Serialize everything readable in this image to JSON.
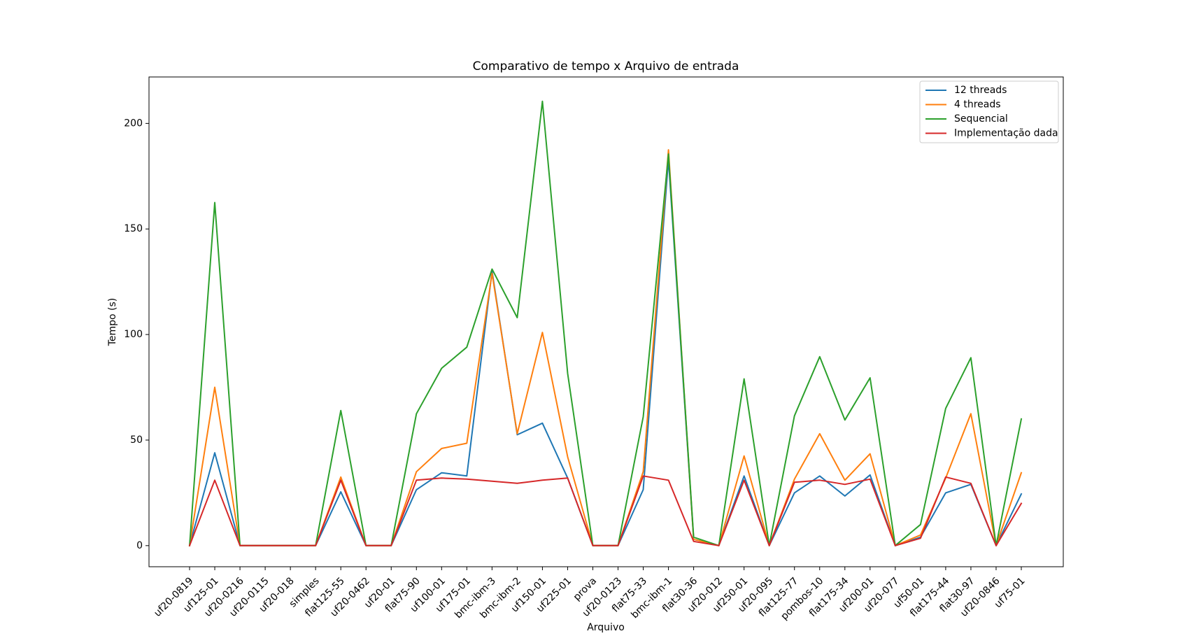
{
  "chart_data": {
    "type": "line",
    "title": "Comparativo de tempo x Arquivo de entrada",
    "xlabel": "Arquivo",
    "ylabel": "Tempo (s)",
    "ylim": [
      -10,
      222
    ],
    "yticks": [
      0,
      50,
      100,
      150,
      200
    ],
    "grid": false,
    "legend_position": "top-right",
    "categories": [
      "uf20-0819",
      "uf125-01",
      "uf20-0216",
      "uf20-0115",
      "uf20-018",
      "simples",
      "flat125-55",
      "uf20-0462",
      "uf20-01",
      "flat75-90",
      "uf100-01",
      "uf175-01",
      "bmc-ibm-3",
      "bmc-ibm-2",
      "uf150-01",
      "uf225-01",
      "prova",
      "uf20-0123",
      "flat75-33",
      "bmc-ibm-1",
      "flat30-36",
      "uf20-012",
      "uf250-01",
      "uf20-095",
      "flat125-77",
      "pombos-10",
      "flat175-34",
      "uf200-01",
      "uf20-077",
      "uf50-01",
      "flat175-44",
      "flat30-97",
      "uf20-0846",
      "uf75-01"
    ],
    "series": [
      {
        "name": "12 threads",
        "color": "#1f77b4",
        "values": [
          0,
          44,
          0,
          0,
          0,
          0,
          25.5,
          0,
          0,
          26.5,
          34.5,
          33,
          130,
          52.5,
          58,
          32,
          0,
          0,
          26.5,
          183,
          3,
          0,
          33,
          0,
          25,
          33,
          23.5,
          33.5,
          0,
          4,
          25,
          29,
          0,
          24.5
        ]
      },
      {
        "name": "4 threads",
        "color": "#ff7f0e",
        "values": [
          0,
          75,
          0,
          0,
          0,
          0,
          32.5,
          0,
          0,
          35,
          46,
          48.5,
          129,
          53,
          101,
          42,
          0,
          0,
          35,
          187.5,
          3,
          0,
          42.5,
          0,
          31.5,
          53,
          31,
          43.5,
          0,
          5,
          32,
          62.5,
          0,
          34.5
        ]
      },
      {
        "name": "Sequencial",
        "color": "#2ca02c",
        "values": [
          0,
          162.5,
          0,
          0,
          0,
          0,
          64,
          0,
          0,
          62.5,
          84,
          94,
          131,
          108,
          210.5,
          81.5,
          0,
          0,
          61,
          185.5,
          4,
          0,
          79,
          0,
          61.5,
          89.5,
          59.5,
          79.5,
          0,
          10,
          65,
          89,
          0,
          60
        ]
      },
      {
        "name": "Implementação dada",
        "color": "#d62728",
        "values": [
          0,
          31,
          0,
          0,
          0,
          0,
          31,
          0,
          0,
          31,
          32,
          31.5,
          30.5,
          29.5,
          31,
          32,
          0,
          0,
          33,
          31,
          2,
          0,
          31,
          0,
          30,
          31,
          29,
          31.5,
          0,
          3.5,
          32.5,
          29.5,
          0,
          20
        ]
      }
    ]
  }
}
